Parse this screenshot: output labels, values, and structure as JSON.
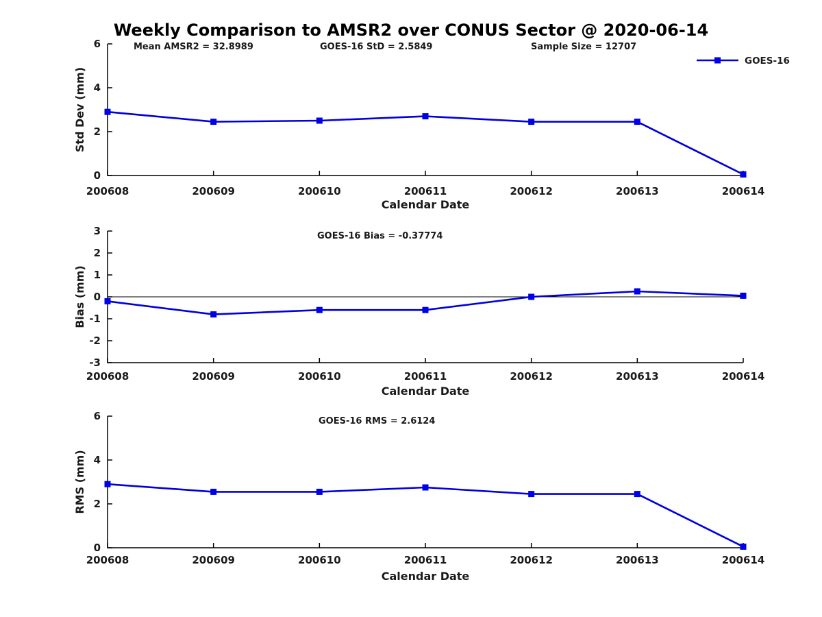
{
  "title": "Weekly Comparison to AMSR2 over CONUS Sector @ 2020-06-14",
  "colors": {
    "line": "#0000dd",
    "marker": "#0000e6",
    "axis": "#000000",
    "zero_line": "#000000",
    "text": "#1a1a1a",
    "title_text": "#000000",
    "background": "#ffffff"
  },
  "legend": {
    "label": "GOES-16",
    "position": "top-right",
    "marker": "filled-square"
  },
  "chart_data": [
    {
      "id": "stddev",
      "type": "line",
      "title": "",
      "xlabel": "Calendar Date",
      "ylabel": "Std Dev (mm)",
      "categories": [
        "200608",
        "200609",
        "200610",
        "200611",
        "200612",
        "200613",
        "200614"
      ],
      "series": [
        {
          "name": "GOES-16",
          "values": [
            2.9,
            2.45,
            2.5,
            2.7,
            2.45,
            2.45,
            0.05
          ]
        }
      ],
      "ylim": [
        0,
        6
      ],
      "yticks": [
        0,
        2,
        4,
        6
      ],
      "grid": false,
      "zero_line": false,
      "show_legend": true,
      "annotations": [
        "Mean AMSR2 = 32.8989",
        "GOES-16 StD = 2.5849",
        "Sample Size = 12707"
      ]
    },
    {
      "id": "bias",
      "type": "line",
      "title": "",
      "xlabel": "Calendar Date",
      "ylabel": "Bias (mm)",
      "categories": [
        "200608",
        "200609",
        "200610",
        "200611",
        "200612",
        "200613",
        "200614"
      ],
      "series": [
        {
          "name": "GOES-16",
          "values": [
            -0.2,
            -0.8,
            -0.6,
            -0.6,
            0.0,
            0.25,
            0.05
          ]
        }
      ],
      "ylim": [
        -3,
        3
      ],
      "yticks": [
        -3,
        -2,
        -1,
        0,
        1,
        2,
        3
      ],
      "grid": false,
      "zero_line": true,
      "show_legend": false,
      "annotations": [
        "GOES-16 Bias  = -0.37774"
      ]
    },
    {
      "id": "rms",
      "type": "line",
      "title": "",
      "xlabel": "Calendar Date",
      "ylabel": "RMS (mm)",
      "categories": [
        "200608",
        "200609",
        "200610",
        "200611",
        "200612",
        "200613",
        "200614"
      ],
      "series": [
        {
          "name": "GOES-16",
          "values": [
            2.9,
            2.55,
            2.55,
            2.75,
            2.45,
            2.45,
            0.05
          ]
        }
      ],
      "ylim": [
        0,
        6
      ],
      "yticks": [
        0,
        2,
        4,
        6
      ],
      "grid": false,
      "zero_line": false,
      "show_legend": false,
      "annotations": [
        "GOES-16 RMS = 2.6124"
      ]
    }
  ]
}
